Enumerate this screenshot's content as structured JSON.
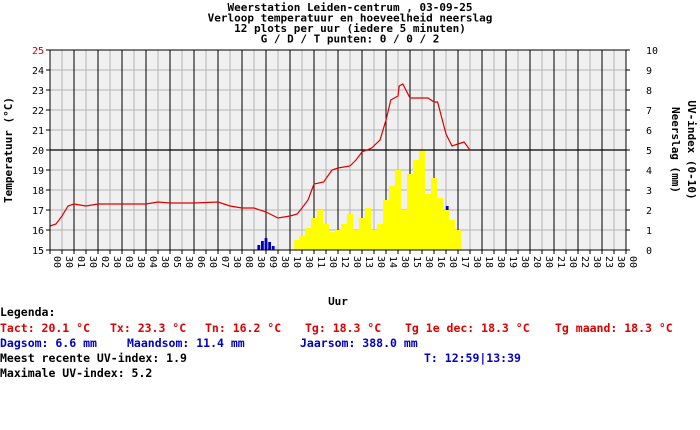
{
  "header": {
    "line1": "Weerstation Leiden-centrum , 03-09-25",
    "line2": "Verloop temperatuur en hoeveelheid neerslag",
    "line3": "12 plots per uur (iedere 5 minuten)",
    "line4": "G / D / T punten: 0 / 0 / 2"
  },
  "chart_data": {
    "type": "line+bar",
    "x_axis_label": "Uur",
    "x_ticks": [
      "00",
      "30",
      "01",
      "30",
      "02",
      "30",
      "03",
      "30",
      "04",
      "30",
      "05",
      "30",
      "06",
      "30",
      "07",
      "30",
      "08",
      "30",
      "09",
      "30",
      "10",
      "30",
      "11",
      "30",
      "12",
      "30",
      "13",
      "30",
      "14",
      "30",
      "15",
      "30",
      "16",
      "30",
      "17",
      "30",
      "18",
      "30",
      "19",
      "30",
      "20",
      "30",
      "21",
      "30",
      "22",
      "30",
      "23",
      "30",
      "00"
    ],
    "y_left": {
      "label": "Temperatuur (°C)",
      "min": 15,
      "max": 25,
      "ticks": [
        15,
        16,
        17,
        18,
        19,
        20,
        21,
        22,
        23,
        24,
        25
      ],
      "top_tick_color": "#e00000"
    },
    "y_right": {
      "label_rain": "Neerslag (mm)",
      "label_uv": "UV-index (0-10)",
      "min": 0,
      "max": 10,
      "ticks": [
        0,
        1,
        2,
        3,
        4,
        5,
        6,
        7,
        8,
        9,
        10
      ]
    },
    "reference_line": {
      "axis": "left",
      "value": 20
    },
    "temperature": {
      "color": "#e00000",
      "points": [
        [
          0,
          16.2
        ],
        [
          0.25,
          16.3
        ],
        [
          0.5,
          16.7
        ],
        [
          0.75,
          17.2
        ],
        [
          1,
          17.3
        ],
        [
          1.5,
          17.2
        ],
        [
          2,
          17.3
        ],
        [
          3,
          17.3
        ],
        [
          4,
          17.3
        ],
        [
          4.5,
          17.4
        ],
        [
          5,
          17.35
        ],
        [
          6,
          17.35
        ],
        [
          7,
          17.4
        ],
        [
          7.5,
          17.2
        ],
        [
          8,
          17.1
        ],
        [
          8.5,
          17.1
        ],
        [
          9,
          16.9
        ],
        [
          9.5,
          16.6
        ],
        [
          10,
          16.7
        ],
        [
          10.3,
          16.8
        ],
        [
          10.5,
          17.1
        ],
        [
          10.75,
          17.5
        ],
        [
          11,
          18.3
        ],
        [
          11.4,
          18.4
        ],
        [
          11.75,
          19
        ],
        [
          12,
          19.1
        ],
        [
          12.5,
          19.2
        ],
        [
          12.75,
          19.5
        ],
        [
          13,
          19.9
        ],
        [
          13.4,
          20.1
        ],
        [
          13.75,
          20.5
        ],
        [
          14,
          21.5
        ],
        [
          14.2,
          22.5
        ],
        [
          14.5,
          22.7
        ],
        [
          14.55,
          23.2
        ],
        [
          14.7,
          23.3
        ],
        [
          15,
          22.6
        ],
        [
          15.5,
          22.6
        ],
        [
          15.75,
          22.6
        ],
        [
          16,
          22.4
        ],
        [
          16.15,
          22.4
        ],
        [
          16.5,
          20.8
        ],
        [
          16.75,
          20.2
        ],
        [
          17,
          20.3
        ],
        [
          17.25,
          20.4
        ],
        [
          17.5,
          20.0
        ]
      ]
    },
    "uv": {
      "color": "#ffff00",
      "values": [
        [
          10.3,
          0.5
        ],
        [
          10.5,
          0.7
        ],
        [
          10.75,
          1.1
        ],
        [
          11,
          1.6
        ],
        [
          11.25,
          2.0
        ],
        [
          11.5,
          1.3
        ],
        [
          11.75,
          0.9
        ],
        [
          12,
          1.0
        ],
        [
          12.25,
          1.3
        ],
        [
          12.5,
          1.8
        ],
        [
          12.75,
          1.0
        ],
        [
          13,
          1.6
        ],
        [
          13.25,
          2.1
        ],
        [
          13.5,
          1.0
        ],
        [
          13.75,
          1.3
        ],
        [
          14,
          2.5
        ],
        [
          14.25,
          3.2
        ],
        [
          14.5,
          4.0
        ],
        [
          14.75,
          2.0
        ],
        [
          15,
          3.8
        ],
        [
          15.25,
          4.5
        ],
        [
          15.5,
          5.0
        ],
        [
          15.75,
          2.8
        ],
        [
          16,
          3.6
        ],
        [
          16.25,
          2.6
        ],
        [
          16.5,
          2.0
        ],
        [
          16.75,
          1.5
        ],
        [
          17,
          1.0
        ]
      ]
    },
    "rain": {
      "color": "#0000c8",
      "values": [
        [
          8.7,
          0.25
        ],
        [
          8.85,
          0.45
        ],
        [
          9.0,
          0.6
        ],
        [
          9.15,
          0.4
        ],
        [
          9.3,
          0.2
        ],
        [
          15.8,
          0.2
        ],
        [
          16.45,
          1.6
        ],
        [
          16.55,
          2.2
        ]
      ]
    }
  },
  "legend": {
    "title": "Legenda:",
    "tact": "Tact: 20.1 °C",
    "tx": "Tx: 23.3 °C",
    "tn": "Tn: 16.2 °C",
    "tg": "Tg: 18.3 °C",
    "tg1": "Tg 1e dec: 18.3 °C",
    "tgm": "Tg maand: 18.3 °C",
    "dagsom": "Dagsom: 6.6 mm",
    "maandsom": "Maandsom: 11.4 mm",
    "jaarsom": "Jaarsom: 388.0 mm",
    "uv_recent": "Meest recente UV-index: 1.9",
    "t_time": "T: 12:59|13:39",
    "uv_max": "Maximale UV-index: 5.2"
  }
}
